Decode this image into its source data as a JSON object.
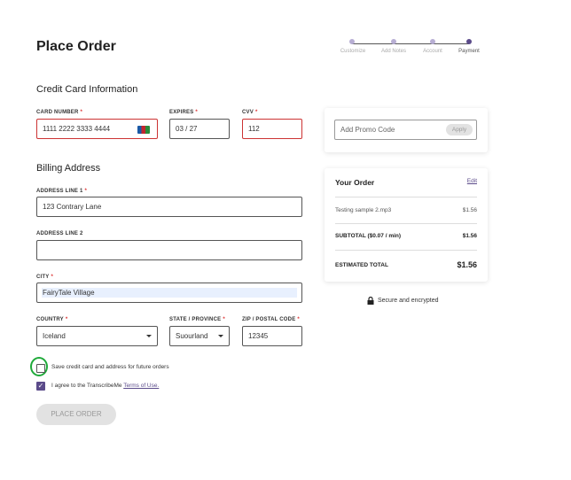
{
  "header": {
    "title": "Place Order",
    "steps": [
      "Customize",
      "Add Notes",
      "Account",
      "Payment"
    ]
  },
  "required_marker": "*",
  "card": {
    "heading": "Credit Card Information",
    "fields": [
      {
        "label": "CARD NUMBER",
        "value": "1111 2222 3333 4444"
      },
      {
        "label": "EXPIRES",
        "value": "03 / 27"
      },
      {
        "label": "CVV",
        "value": "112"
      }
    ]
  },
  "billing": {
    "heading": "Billing Address",
    "address1": {
      "label": "ADDRESS LINE 1",
      "value": "123 Contrary Lane"
    },
    "address2": {
      "label": "ADDRESS LINE 2"
    },
    "city": {
      "label": "CITY",
      "value": "FairyTale Village"
    },
    "country": {
      "label": "COUNTRY",
      "value": "Iceland"
    },
    "state": {
      "label": "STATE / PROVINCE",
      "value": "Suourland"
    },
    "zip": {
      "label": "ZIP / POSTAL CODE",
      "value": "12345"
    }
  },
  "options": {
    "save": "Save credit card and address for future orders",
    "agree": "I agree to the TranscribeMe",
    "terms": "Terms of Use."
  },
  "button": "PLACE ORDER",
  "promo": {
    "placeholder": "Add Promo Code",
    "apply": "Apply"
  },
  "order": {
    "heading": "Your Order",
    "edit": "Edit",
    "rows": [
      [
        "Testing sample 2.mp3",
        "$1.56"
      ],
      [
        "SUBTOTAL ($0.07 / min)",
        "$1.56"
      ],
      [
        "ESTIMATED TOTAL",
        "$1.56"
      ]
    ]
  },
  "secure": "Secure and encrypted"
}
